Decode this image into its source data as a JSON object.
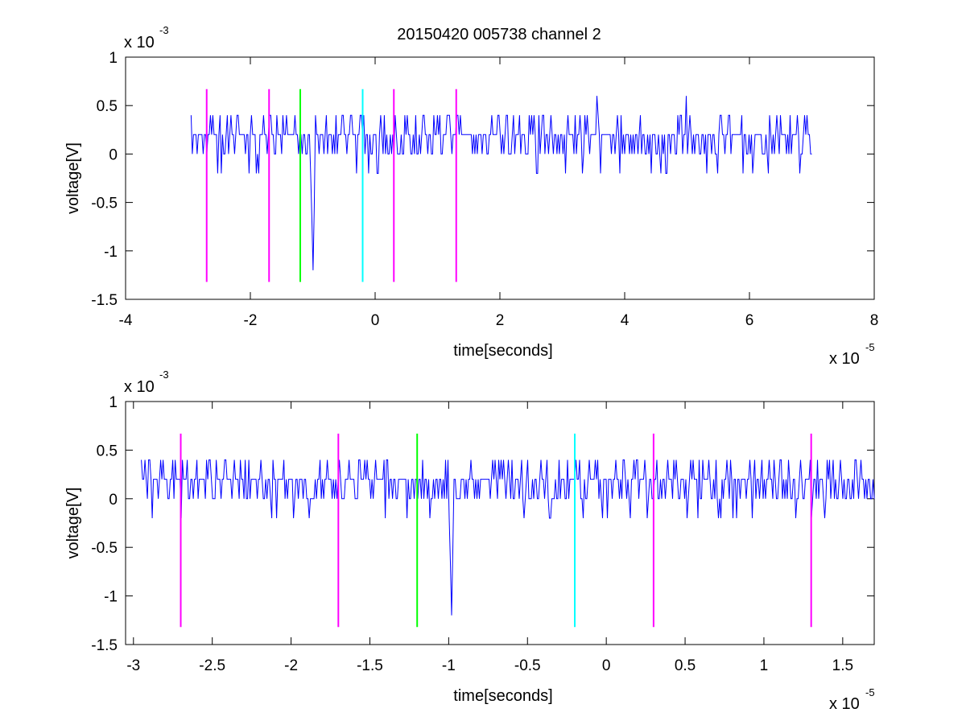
{
  "title": "20150420 005738 channel 2",
  "colors": {
    "signal": "#0000ff",
    "magenta_marker": "#ff00ff",
    "green_marker": "#00ff00",
    "cyan_marker": "#00ffff",
    "axes": "#000000",
    "background": "#ffffff"
  },
  "chart_data": [
    {
      "type": "line",
      "title": "20150420 005738 channel 2",
      "xlabel": "time[seconds]",
      "ylabel": "voltage[V]",
      "x_multiplier": "x 10",
      "x_exponent": "-5",
      "y_multiplier": "x 10",
      "y_exponent": "-3",
      "xlim": [
        -4,
        8
      ],
      "ylim": [
        -1.5,
        1
      ],
      "x_ticks": [
        -4,
        -2,
        0,
        2,
        4,
        6,
        8
      ],
      "x_tick_labels": [
        "-4",
        "-2",
        "0",
        "2",
        "4",
        "6",
        "8"
      ],
      "y_ticks": [
        -1.5,
        -1,
        -0.5,
        0,
        0.5,
        1
      ],
      "y_tick_labels": [
        "-1.5",
        "-1",
        "-0.5",
        "0",
        "0.5",
        "1"
      ],
      "grid": false,
      "series": [
        {
          "color": "#0000ff",
          "x_range": [
            -2.95,
            7.0
          ],
          "baseline": 0.2,
          "levels": [
            -0.2,
            0,
            0.2,
            0.4
          ],
          "spikes": [
            {
              "x": -1.0,
              "y": -1.2
            },
            {
              "x": 3.55,
              "y": 0.6
            },
            {
              "x": 4.98,
              "y": 0.6
            }
          ]
        }
      ],
      "markers": [
        {
          "x": -2.7,
          "color": "magenta",
          "y_range": [
            -1.32,
            0.67
          ]
        },
        {
          "x": -1.7,
          "color": "magenta",
          "y_range": [
            -1.32,
            0.67
          ]
        },
        {
          "x": -1.2,
          "color": "green",
          "y_range": [
            -1.32,
            0.67
          ]
        },
        {
          "x": -0.2,
          "color": "cyan",
          "y_range": [
            -1.32,
            0.67
          ]
        },
        {
          "x": 0.3,
          "color": "magenta",
          "y_range": [
            -1.32,
            0.67
          ]
        },
        {
          "x": 1.3,
          "color": "magenta",
          "y_range": [
            -1.32,
            0.67
          ]
        }
      ]
    },
    {
      "type": "line",
      "xlabel": "time[seconds]",
      "ylabel": "voltage[V]",
      "x_multiplier": "x 10",
      "x_exponent": "-5",
      "y_multiplier": "x 10",
      "y_exponent": "-3",
      "xlim": [
        -3.05,
        1.7
      ],
      "ylim": [
        -1.5,
        1
      ],
      "x_ticks": [
        -3,
        -2.5,
        -2,
        -1.5,
        -1,
        -0.5,
        0,
        0.5,
        1,
        1.5
      ],
      "x_tick_labels": [
        "-3",
        "-2.5",
        "-2",
        "-1.5",
        "-1",
        "-0.5",
        "0",
        "0.5",
        "1",
        "1.5"
      ],
      "y_ticks": [
        -1.5,
        -1,
        -0.5,
        0,
        0.5,
        1
      ],
      "y_tick_labels": [
        "-1.5",
        "-1",
        "-0.5",
        "0",
        "0.5",
        "1"
      ],
      "grid": false,
      "series": [
        {
          "color": "#0000ff",
          "x_range": [
            -2.95,
            1.7
          ],
          "baseline": 0.2,
          "levels": [
            -0.2,
            0,
            0.2,
            0.4
          ],
          "spikes": [
            {
              "x": -0.98,
              "y": -1.2
            }
          ]
        }
      ],
      "markers": [
        {
          "x": -2.7,
          "color": "magenta",
          "y_range": [
            -1.32,
            0.67
          ]
        },
        {
          "x": -1.7,
          "color": "magenta",
          "y_range": [
            -1.32,
            0.67
          ]
        },
        {
          "x": -1.2,
          "color": "green",
          "y_range": [
            -1.32,
            0.67
          ]
        },
        {
          "x": -0.2,
          "color": "cyan",
          "y_range": [
            -1.32,
            0.67
          ]
        },
        {
          "x": 0.3,
          "color": "magenta",
          "y_range": [
            -1.32,
            0.67
          ]
        },
        {
          "x": 1.3,
          "color": "magenta",
          "y_range": [
            -1.32,
            0.67
          ]
        }
      ]
    }
  ]
}
